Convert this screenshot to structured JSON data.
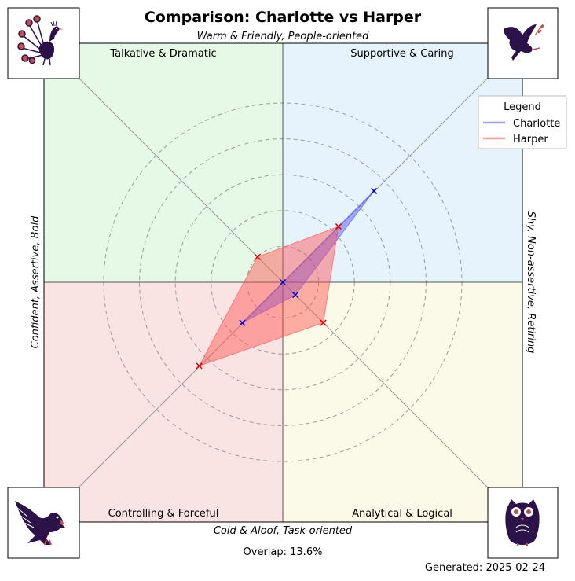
{
  "title": "Comparison: Charlotte vs Harper",
  "axes": {
    "top": "Warm & Friendly, People-oriented",
    "bottom": "Cold & Aloof, Task-oriented",
    "left": "Confident, Assertive, Bold",
    "right": "Shy, Non-assertive, Retiring"
  },
  "quadrants": {
    "top_left": {
      "label": "Talkative & Dramatic",
      "color": "#e6f9e6",
      "icon": "peacock-icon"
    },
    "top_right": {
      "label": "Supportive & Caring",
      "color": "#e6f3fd",
      "icon": "dove-icon"
    },
    "bottom_left": {
      "label": "Controlling & Forceful",
      "color": "#fae3e3",
      "icon": "eagle-icon"
    },
    "bottom_right": {
      "label": "Analytical & Logical",
      "color": "#fbfae8",
      "icon": "owl-icon"
    }
  },
  "legend": {
    "title": "Legend",
    "entries": [
      "Charlotte",
      "Harper"
    ]
  },
  "overlap": "Overlap: 13.6%",
  "generated": "Generated: 2025-02-24",
  "chart_data": {
    "type": "radar",
    "directions": [
      "Supportive & Caring",
      "Analytical & Logical",
      "Controlling & Forceful",
      "Talkative & Dramatic"
    ],
    "range": [
      0,
      5
    ],
    "rings": 5,
    "grid": true,
    "series": [
      {
        "name": "Charlotte",
        "color": "#4d4dff",
        "values": [
          3.6,
          0.5,
          1.6,
          0.0
        ]
      },
      {
        "name": "Harper",
        "color": "#ff4d4d",
        "values": [
          2.2,
          1.6,
          3.3,
          1.0
        ]
      }
    ]
  }
}
